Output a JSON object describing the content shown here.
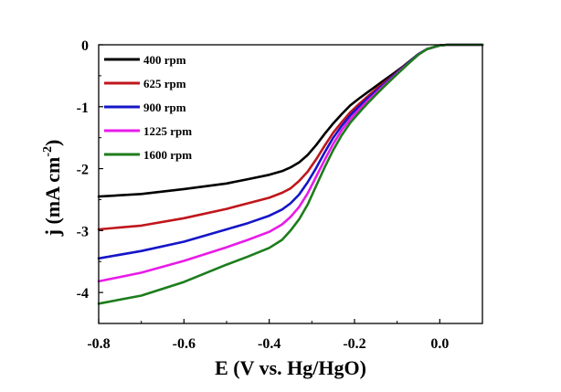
{
  "chart_data": {
    "type": "line",
    "title": "",
    "xlabel": "E (V vs. Hg/HgO)",
    "ylabel_main": "j (mA cm",
    "ylabel_sup": "-2",
    "ylabel_close": ")",
    "xlim": [
      -0.8,
      0.1
    ],
    "ylim": [
      -4.5,
      0
    ],
    "xticks": [
      -0.8,
      -0.6,
      -0.4,
      -0.2,
      0.0
    ],
    "xtick_labels": [
      "-0.8",
      "-0.6",
      "-0.4",
      "-0.2",
      "0.0"
    ],
    "yticks": [
      0,
      -1,
      -2,
      -3,
      -4
    ],
    "ytick_labels": [
      "0",
      "-1",
      "-2",
      "-3",
      "-4"
    ],
    "grid": false,
    "legend_position": "top-left",
    "series": [
      {
        "name": "400 rpm",
        "color": "#000000",
        "x": [
          -0.8,
          -0.7,
          -0.6,
          -0.5,
          -0.45,
          -0.4,
          -0.37,
          -0.35,
          -0.33,
          -0.31,
          -0.29,
          -0.27,
          -0.25,
          -0.23,
          -0.21,
          -0.19,
          -0.17,
          -0.15,
          -0.13,
          -0.11,
          -0.09,
          -0.07,
          -0.05,
          -0.03,
          -0.01,
          0.0,
          0.02,
          0.05,
          0.1
        ],
        "y": [
          -2.45,
          -2.41,
          -2.33,
          -2.24,
          -2.17,
          -2.1,
          -2.04,
          -1.98,
          -1.9,
          -1.78,
          -1.62,
          -1.44,
          -1.27,
          -1.12,
          -0.98,
          -0.87,
          -0.77,
          -0.67,
          -0.57,
          -0.47,
          -0.37,
          -0.26,
          -0.15,
          -0.07,
          -0.03,
          -0.01,
          0.0,
          0.0,
          0.0
        ]
      },
      {
        "name": "625 rpm",
        "color": "#c0161c",
        "x": [
          -0.8,
          -0.7,
          -0.6,
          -0.5,
          -0.45,
          -0.4,
          -0.37,
          -0.35,
          -0.33,
          -0.31,
          -0.29,
          -0.27,
          -0.25,
          -0.23,
          -0.21,
          -0.19,
          -0.17,
          -0.15,
          -0.13,
          -0.11,
          -0.09,
          -0.07,
          -0.05,
          -0.03,
          -0.01,
          0.0,
          0.02,
          0.05,
          0.1
        ],
        "y": [
          -2.98,
          -2.92,
          -2.8,
          -2.65,
          -2.56,
          -2.47,
          -2.39,
          -2.32,
          -2.2,
          -2.05,
          -1.85,
          -1.63,
          -1.42,
          -1.25,
          -1.09,
          -0.96,
          -0.84,
          -0.72,
          -0.61,
          -0.5,
          -0.38,
          -0.27,
          -0.15,
          -0.07,
          -0.03,
          -0.01,
          0.0,
          0.0,
          0.0
        ]
      },
      {
        "name": "900 rpm",
        "color": "#1515c8",
        "x": [
          -0.8,
          -0.7,
          -0.6,
          -0.5,
          -0.45,
          -0.4,
          -0.37,
          -0.35,
          -0.33,
          -0.31,
          -0.29,
          -0.27,
          -0.25,
          -0.23,
          -0.21,
          -0.19,
          -0.17,
          -0.15,
          -0.13,
          -0.11,
          -0.09,
          -0.07,
          -0.05,
          -0.03,
          -0.01,
          0.0,
          0.02,
          0.05,
          0.1
        ],
        "y": [
          -3.45,
          -3.33,
          -3.18,
          -2.98,
          -2.88,
          -2.76,
          -2.66,
          -2.56,
          -2.42,
          -2.22,
          -1.99,
          -1.74,
          -1.5,
          -1.31,
          -1.14,
          -1.0,
          -0.87,
          -0.75,
          -0.63,
          -0.51,
          -0.39,
          -0.27,
          -0.15,
          -0.07,
          -0.03,
          -0.01,
          0.0,
          0.0,
          0.0
        ]
      },
      {
        "name": "1225 rpm",
        "color": "#e81be8",
        "x": [
          -0.8,
          -0.7,
          -0.6,
          -0.5,
          -0.45,
          -0.4,
          -0.37,
          -0.35,
          -0.33,
          -0.31,
          -0.29,
          -0.27,
          -0.25,
          -0.23,
          -0.21,
          -0.19,
          -0.17,
          -0.15,
          -0.13,
          -0.11,
          -0.09,
          -0.07,
          -0.05,
          -0.03,
          -0.01,
          0.0,
          0.02,
          0.05,
          0.1
        ],
        "y": [
          -3.82,
          -3.68,
          -3.49,
          -3.27,
          -3.15,
          -3.02,
          -2.9,
          -2.78,
          -2.62,
          -2.4,
          -2.13,
          -1.86,
          -1.6,
          -1.38,
          -1.2,
          -1.05,
          -0.91,
          -0.78,
          -0.65,
          -0.53,
          -0.4,
          -0.28,
          -0.16,
          -0.07,
          -0.03,
          -0.01,
          0.0,
          0.0,
          0.0
        ]
      },
      {
        "name": "1600 rpm",
        "color": "#1c7d1c",
        "x": [
          -0.8,
          -0.7,
          -0.6,
          -0.5,
          -0.45,
          -0.4,
          -0.37,
          -0.35,
          -0.33,
          -0.31,
          -0.29,
          -0.27,
          -0.25,
          -0.23,
          -0.21,
          -0.19,
          -0.17,
          -0.15,
          -0.13,
          -0.11,
          -0.09,
          -0.07,
          -0.05,
          -0.03,
          -0.01,
          0.0,
          0.02,
          0.05,
          0.1
        ],
        "y": [
          -4.18,
          -4.05,
          -3.83,
          -3.55,
          -3.42,
          -3.28,
          -3.15,
          -3.0,
          -2.82,
          -2.58,
          -2.28,
          -1.98,
          -1.7,
          -1.46,
          -1.26,
          -1.1,
          -0.95,
          -0.81,
          -0.67,
          -0.54,
          -0.41,
          -0.28,
          -0.16,
          -0.07,
          -0.03,
          -0.01,
          0.0,
          0.0,
          0.0
        ]
      }
    ]
  }
}
